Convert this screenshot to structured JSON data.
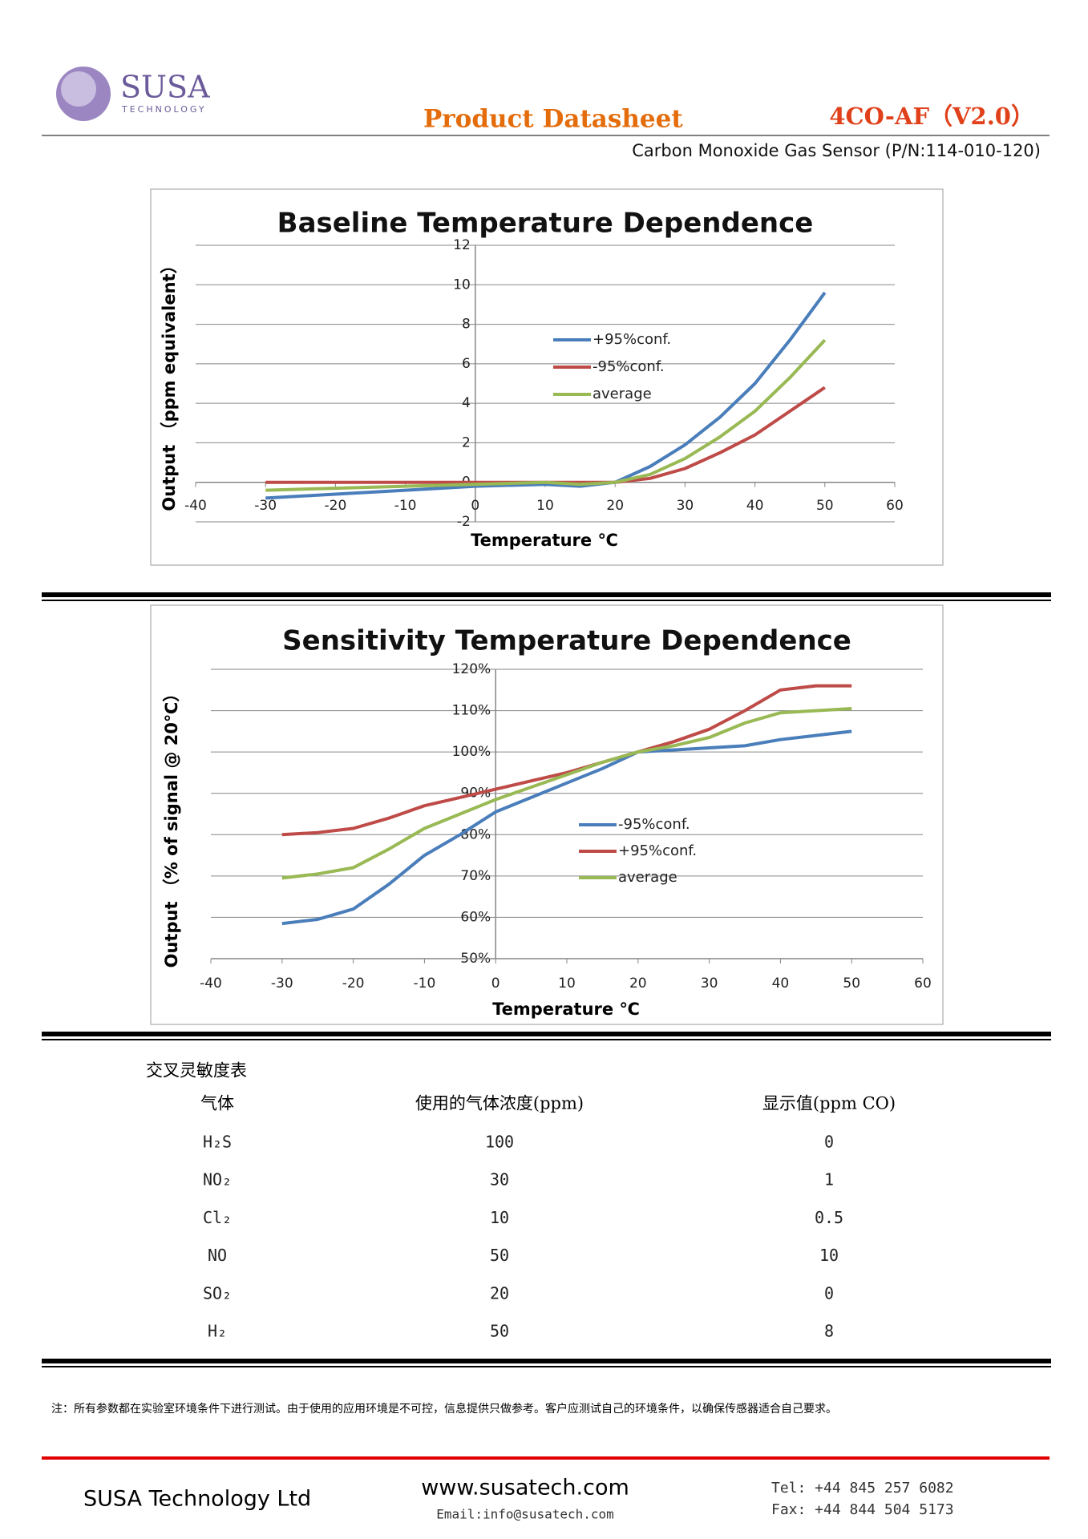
{
  "header": {
    "logo": "SUSA",
    "logo_sub": "TECHNOLOGY",
    "doc_type": "Product Datasheet",
    "model": "4CO-AF（V2.0）",
    "subtitle": "Carbon  Monoxide  Gas  Sensor  (P/N:114-010-120)"
  },
  "chart_data": [
    {
      "type": "line",
      "title": "Baseline Temperature Dependence",
      "x_label": "Temperature ℃",
      "y_label": "Output （ppm equivalent）",
      "x": [
        -30,
        -20,
        -10,
        0,
        10,
        15,
        20,
        25,
        30,
        35,
        40,
        45,
        50
      ],
      "series": [
        {
          "name": "+95%conf.",
          "color": "#4a7ebb",
          "values": [
            -0.8,
            -0.6,
            -0.4,
            -0.2,
            -0.1,
            -0.2,
            0,
            0.8,
            1.9,
            3.3,
            5.0,
            7.2,
            9.6
          ]
        },
        {
          "name": "-95%conf.",
          "color": "#be4b48",
          "values": [
            0,
            0,
            0,
            0,
            0,
            0,
            0,
            0.2,
            0.7,
            1.5,
            2.4,
            3.6,
            4.8
          ]
        },
        {
          "name": "average",
          "color": "#98b954",
          "values": [
            -0.4,
            -0.3,
            -0.2,
            -0.1,
            0,
            -0.1,
            0,
            0.4,
            1.2,
            2.3,
            3.6,
            5.3,
            7.2
          ]
        }
      ],
      "xlim": [
        -40,
        60
      ],
      "xticks": [
        -40,
        -30,
        -20,
        -10,
        0,
        10,
        20,
        30,
        40,
        50,
        60
      ],
      "ylim": [
        -2,
        12
      ],
      "yticks": [
        -2,
        0,
        2,
        4,
        6,
        8,
        10,
        12
      ],
      "grid": true
    },
    {
      "type": "line",
      "title": "Sensitivity Temperature Dependence",
      "x_label": "Temperature ℃",
      "y_label": "Output （% of signal  @ 20℃）",
      "x": [
        -30,
        -25,
        -20,
        -15,
        -10,
        -5,
        0,
        5,
        10,
        15,
        20,
        25,
        30,
        35,
        40,
        45,
        50
      ],
      "series": [
        {
          "name": "-95%conf.",
          "color": "#4a7ebb",
          "values": [
            58.5,
            59.5,
            62,
            68,
            75,
            80,
            85.5,
            89,
            92.5,
            96,
            100,
            100.5,
            101,
            101.5,
            103,
            104,
            105
          ]
        },
        {
          "name": "+95%conf.",
          "color": "#be4b48",
          "values": [
            80,
            80.5,
            81.5,
            84,
            87,
            89,
            91,
            93,
            95,
            97.5,
            100,
            102.5,
            105.5,
            110,
            115,
            116,
            116
          ]
        },
        {
          "name": "average",
          "color": "#98b954",
          "values": [
            69.5,
            70.5,
            72,
            76.5,
            81.5,
            85,
            88.5,
            91.5,
            94.5,
            97.5,
            100,
            101.5,
            103.5,
            107,
            109.5,
            110,
            110.5
          ]
        }
      ],
      "xlim": [
        -40,
        60
      ],
      "xticks": [
        -40,
        -30,
        -20,
        -10,
        0,
        10,
        20,
        30,
        40,
        50,
        60
      ],
      "ylim": [
        50,
        120
      ],
      "yticks": [
        {
          "value": 50,
          "label": "50%"
        },
        {
          "value": 60,
          "label": "60%"
        },
        {
          "value": 70,
          "label": "70%"
        },
        {
          "value": 80,
          "label": "80%"
        },
        {
          "value": 90,
          "label": "90%"
        },
        {
          "value": 100,
          "label": "100%"
        },
        {
          "value": 110,
          "label": "110%"
        },
        {
          "value": 120,
          "label": "120%"
        }
      ],
      "grid": true
    }
  ],
  "table": {
    "title": "交叉灵敏度表",
    "header": [
      "气体",
      "使用的气体浓度(ppm)",
      "显示值(ppm CO)"
    ],
    "rows": [
      [
        "H₂S",
        100,
        0
      ],
      [
        "NO₂",
        30,
        1
      ],
      [
        "Cl₂",
        10,
        0.5
      ],
      [
        "NO",
        50,
        10
      ],
      [
        "SO₂",
        20,
        0
      ],
      [
        "H₂",
        50,
        8
      ]
    ]
  },
  "note": "注：所有参数都在实验室环境条件下进行测试。由于使用的应用环境是不可控，信息提供只做参考。客户应测试自己的环境条件，以确保传感器适合自己要求。",
  "footer": {
    "company": "SUSA Technology Ltd",
    "web": "www.susatech.com",
    "email": "Email:info@susatech.com",
    "tel": "Tel: +44 845 257 6082",
    "fax": "Fax: +44 844 504 5173"
  }
}
